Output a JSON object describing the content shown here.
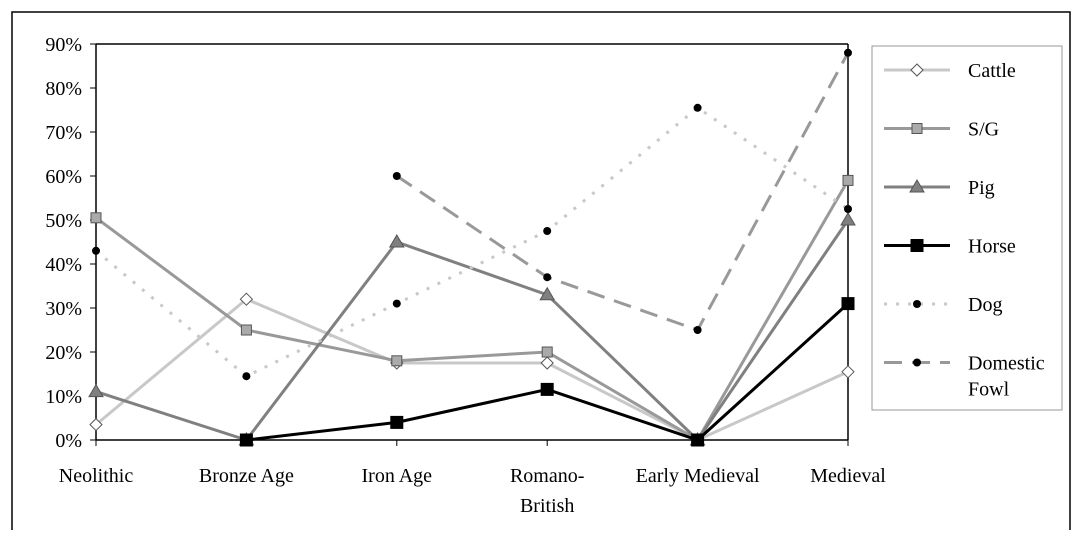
{
  "chart_data": {
    "type": "line",
    "categories": [
      "Neolithic",
      "Bronze Age",
      "Iron Age",
      "Romano-British",
      "Early Medieval",
      "Medieval"
    ],
    "ylim": [
      0,
      90
    ],
    "yticks": [
      {
        "value": 0,
        "label": "0%"
      },
      {
        "value": 10,
        "label": "10%"
      },
      {
        "value": 20,
        "label": "20%"
      },
      {
        "value": 30,
        "label": "30%"
      },
      {
        "value": 40,
        "label": "40%"
      },
      {
        "value": 50,
        "label": "50%"
      },
      {
        "value": 60,
        "label": "60%"
      },
      {
        "value": 70,
        "label": "70%"
      },
      {
        "value": 80,
        "label": "80%"
      },
      {
        "value": 90,
        "label": "90%"
      }
    ],
    "legend": "right",
    "series": [
      {
        "name": "Cattle",
        "color": "#c8c8c8",
        "line_style": "solid",
        "marker": "diamond",
        "marker_fill": "#ffffff",
        "values": [
          3.5,
          32,
          17.5,
          17.5,
          0,
          15.5
        ]
      },
      {
        "name": "S/G",
        "color": "#999999",
        "line_style": "solid",
        "marker": "square",
        "marker_fill": "#aaaaaa",
        "values": [
          50.5,
          25,
          18,
          20,
          0,
          59
        ]
      },
      {
        "name": "Pig",
        "color": "#808080",
        "line_style": "solid",
        "marker": "triangle",
        "marker_fill": "#808080",
        "values": [
          11,
          0,
          45,
          33,
          0,
          50
        ]
      },
      {
        "name": "Horse",
        "color": "#000000",
        "line_style": "solid",
        "marker": "square",
        "marker_fill": "#000000",
        "values": [
          null,
          0,
          4,
          11.5,
          0,
          31
        ]
      },
      {
        "name": "Dog",
        "color": "#c8c8c8",
        "line_style": "dotted",
        "marker": "circle",
        "marker_fill": "#000000",
        "values": [
          43,
          14.5,
          31,
          47.5,
          75.5,
          52.5
        ]
      },
      {
        "name": "Domestic Fowl",
        "color": "#999999",
        "line_style": "dashed",
        "marker": "circle",
        "marker_fill": "#000000",
        "values": [
          null,
          null,
          60,
          37,
          25,
          88
        ]
      }
    ]
  }
}
